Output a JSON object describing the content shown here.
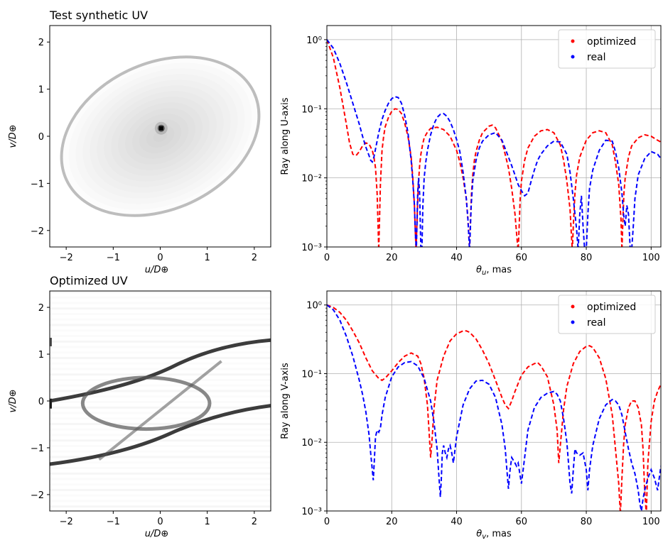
{
  "colors": {
    "optimized": "#ff0000",
    "real": "#0000ff",
    "grid": "#b0b0b0"
  },
  "chart_data": [
    {
      "type": "heatmap",
      "title": "Test synthetic UV",
      "xlabel": "u/D⊕",
      "ylabel": "v/D⊕",
      "xlim": [
        -2.35,
        2.35
      ],
      "ylim": [
        -2.35,
        2.35
      ],
      "xticks": [
        -2,
        -1,
        0,
        1,
        2
      ],
      "yticks": [
        -2,
        -1,
        0,
        1,
        2
      ],
      "xtick_labels": [
        "−2",
        "−1",
        "0",
        "1",
        "2"
      ],
      "ytick_labels": [
        "−2",
        "−1",
        "0",
        "1",
        "2"
      ],
      "grid": false,
      "features": {
        "ellipse": {
          "center": [
            0,
            0
          ],
          "semi_major": 2.2,
          "semi_minor": 1.55,
          "angle_deg": 25
        },
        "peak": [
          0.02,
          0.17
        ]
      }
    },
    {
      "type": "line",
      "ylabel": "Ray along U-axis",
      "xlabel": "θu, mas",
      "xlim": [
        0,
        103
      ],
      "ylim": [
        0.001,
        1.6
      ],
      "yscale": "log",
      "grid": true,
      "xticks": [
        0,
        20,
        40,
        60,
        80,
        100
      ],
      "yticks": [
        0.001,
        0.01,
        0.1,
        1
      ],
      "ytick_labels": [
        "10⁻³",
        "10⁻²",
        "10⁻¹",
        "10⁰"
      ],
      "legend": "top-right",
      "legend_entries": [
        "optimized",
        "real"
      ],
      "series": [
        {
          "name": "optimized",
          "x": [
            0,
            2,
            4,
            6,
            7,
            8,
            9,
            10,
            11,
            12,
            13,
            14,
            14.5,
            15,
            15.5,
            16,
            16.5,
            17,
            17.5,
            18,
            19,
            20,
            21,
            22,
            23,
            24,
            25,
            26,
            26.5,
            27,
            27.3,
            27.5,
            27.8,
            28.2,
            28.6,
            29,
            29.5,
            30,
            31,
            32,
            34,
            36,
            38,
            40,
            41,
            42,
            43,
            43.5,
            44,
            44.3,
            44.6,
            45,
            45.5,
            46,
            47,
            48,
            50,
            51,
            52,
            54,
            56,
            57,
            58,
            58.7,
            59,
            59.3,
            59.6,
            60,
            61,
            62,
            64,
            66,
            68,
            70,
            72,
            73,
            74,
            75,
            75.4,
            75.7,
            76,
            76.5,
            77,
            78,
            80,
            82,
            84,
            86,
            88,
            89,
            90,
            90.7,
            91,
            91.3,
            91.6,
            92,
            93,
            94,
            96,
            98,
            100,
            102,
            103
          ],
          "y": [
            1,
            0.55,
            0.2,
            0.06,
            0.032,
            0.022,
            0.021,
            0.024,
            0.029,
            0.032,
            0.031,
            0.025,
            0.02,
            0.014,
            0.006,
            0.0009,
            0.008,
            0.025,
            0.04,
            0.055,
            0.075,
            0.092,
            0.1,
            0.098,
            0.085,
            0.062,
            0.04,
            0.02,
            0.01,
            0.004,
            0.0015,
            0.0009,
            0.0025,
            0.008,
            0.015,
            0.022,
            0.03,
            0.038,
            0.046,
            0.052,
            0.054,
            0.05,
            0.04,
            0.025,
            0.017,
            0.01,
            0.005,
            0.0025,
            0.0009,
            0.0025,
            0.006,
            0.011,
            0.018,
            0.024,
            0.035,
            0.045,
            0.056,
            0.058,
            0.053,
            0.034,
            0.014,
            0.007,
            0.003,
            0.0012,
            0.0009,
            0.002,
            0.005,
            0.009,
            0.018,
            0.027,
            0.04,
            0.048,
            0.05,
            0.045,
            0.03,
            0.018,
            0.009,
            0.0035,
            0.0015,
            0.0009,
            0.002,
            0.006,
            0.011,
            0.02,
            0.035,
            0.045,
            0.048,
            0.045,
            0.03,
            0.017,
            0.008,
            0.0025,
            0.0009,
            0.0025,
            0.006,
            0.01,
            0.02,
            0.029,
            0.038,
            0.042,
            0.04,
            0.035,
            0.033
          ]
        },
        {
          "name": "real",
          "x": [
            0,
            2,
            4,
            6,
            8,
            10,
            11,
            12,
            13,
            13.5,
            14,
            14.5,
            15,
            16,
            17,
            18,
            19,
            20,
            21,
            22,
            23,
            24,
            25,
            26,
            26.5,
            27,
            27.3,
            27.6,
            28,
            28.3,
            28.6,
            29,
            29.3,
            29.6,
            30,
            30.5,
            31,
            32,
            33,
            34,
            35,
            36,
            37,
            38,
            39,
            40,
            41,
            42,
            43,
            43.5,
            44,
            44.5,
            45,
            46,
            47,
            48,
            50,
            52,
            54,
            56,
            57,
            58,
            59,
            60,
            61,
            62,
            63,
            64,
            65,
            66,
            68,
            70,
            72,
            74,
            75,
            76,
            77,
            77.5,
            78,
            78.5,
            79,
            79.5,
            80,
            80.5,
            81,
            82,
            84,
            86,
            88,
            89,
            90,
            91,
            91.5,
            92,
            92.5,
            93,
            93.5,
            94,
            94.5,
            95,
            96,
            98,
            100,
            102,
            103
          ],
          "y": [
            1,
            0.75,
            0.45,
            0.24,
            0.12,
            0.06,
            0.04,
            0.028,
            0.021,
            0.018,
            0.017,
            0.02,
            0.026,
            0.045,
            0.07,
            0.095,
            0.12,
            0.14,
            0.15,
            0.145,
            0.12,
            0.08,
            0.045,
            0.018,
            0.009,
            0.004,
            0.0015,
            0.0009,
            0.006,
            0.01,
            0.006,
            0.0009,
            0.0009,
            0.004,
            0.01,
            0.017,
            0.025,
            0.042,
            0.06,
            0.075,
            0.083,
            0.085,
            0.078,
            0.065,
            0.05,
            0.036,
            0.024,
            0.012,
            0.005,
            0.0025,
            0.0009,
            0.004,
            0.009,
            0.018,
            0.027,
            0.034,
            0.042,
            0.045,
            0.035,
            0.02,
            0.015,
            0.011,
            0.008,
            0.0065,
            0.0055,
            0.006,
            0.009,
            0.013,
            0.018,
            0.022,
            0.029,
            0.034,
            0.033,
            0.022,
            0.012,
            0.005,
            0.0018,
            0.0009,
            0.003,
            0.0055,
            0.002,
            0.0009,
            0.0009,
            0.003,
            0.007,
            0.013,
            0.025,
            0.035,
            0.034,
            0.024,
            0.014,
            0.006,
            0.003,
            0.002,
            0.004,
            0.003,
            0.001,
            0.0009,
            0.002,
            0.005,
            0.011,
            0.019,
            0.024,
            0.022,
            0.019
          ]
        }
      ]
    },
    {
      "type": "heatmap",
      "title": "Optimized UV",
      "xlabel": "u/D⊕",
      "ylabel": "v/D⊕",
      "xlim": [
        -2.35,
        2.35
      ],
      "ylim": [
        -2.35,
        2.35
      ],
      "xticks": [
        -2,
        -1,
        0,
        1,
        2
      ],
      "yticks": [
        -2,
        -1,
        0,
        1,
        2
      ],
      "xtick_labels": [
        "−2",
        "−1",
        "0",
        "1",
        "2"
      ],
      "ytick_labels": [
        "−2",
        "−1",
        "0",
        "1",
        "2"
      ],
      "grid": false,
      "features": {
        "upper_arc": {
          "from": [
            -2.35,
            0.0
          ],
          "to": [
            2.35,
            1.3
          ]
        },
        "lower_arc": {
          "from": [
            -2.35,
            -1.35
          ],
          "to": [
            2.35,
            -0.1
          ]
        },
        "inner_ellipse": {
          "center": [
            -0.3,
            -0.05
          ],
          "semi_major": 1.35,
          "semi_minor": 0.55
        }
      }
    },
    {
      "type": "line",
      "ylabel": "Ray along V-axis",
      "xlabel": "θv, mas",
      "xlim": [
        0,
        103
      ],
      "ylim": [
        0.001,
        1.6
      ],
      "yscale": "log",
      "grid": true,
      "xticks": [
        0,
        20,
        40,
        60,
        80,
        100
      ],
      "yticks": [
        0.001,
        0.01,
        0.1,
        1
      ],
      "ytick_labels": [
        "10⁻³",
        "10⁻²",
        "10⁻¹",
        "10⁰"
      ],
      "legend": "top-right",
      "legend_entries": [
        "optimized",
        "real"
      ],
      "series": [
        {
          "name": "optimized",
          "x": [
            0,
            2,
            4,
            6,
            8,
            10,
            12,
            14,
            16,
            17,
            18,
            20,
            22,
            24,
            26,
            28,
            29,
            30,
            31,
            31.5,
            32,
            32.5,
            33,
            34,
            36,
            38,
            40,
            42,
            43,
            44,
            46,
            48,
            50,
            52,
            54,
            55,
            56,
            57,
            58,
            60,
            62,
            64,
            65,
            66,
            68,
            70,
            71,
            71.5,
            72,
            73,
            74,
            76,
            78,
            80,
            81,
            82,
            84,
            86,
            88,
            89,
            90,
            90.5,
            91,
            91.5,
            92,
            93,
            94,
            95,
            96,
            97,
            97.5,
            98,
            98.5,
            99,
            100,
            101,
            102,
            103
          ],
          "y": [
            1,
            0.92,
            0.78,
            0.6,
            0.42,
            0.28,
            0.17,
            0.11,
            0.085,
            0.08,
            0.086,
            0.11,
            0.145,
            0.18,
            0.2,
            0.18,
            0.14,
            0.085,
            0.035,
            0.015,
            0.006,
            0.012,
            0.03,
            0.08,
            0.18,
            0.3,
            0.38,
            0.42,
            0.42,
            0.4,
            0.32,
            0.22,
            0.14,
            0.08,
            0.045,
            0.035,
            0.031,
            0.04,
            0.055,
            0.095,
            0.125,
            0.14,
            0.145,
            0.13,
            0.09,
            0.035,
            0.015,
            0.005,
            0.009,
            0.03,
            0.065,
            0.14,
            0.21,
            0.25,
            0.255,
            0.24,
            0.17,
            0.085,
            0.025,
            0.008,
            0.0025,
            0.0009,
            0.003,
            0.009,
            0.018,
            0.032,
            0.04,
            0.04,
            0.032,
            0.018,
            0.008,
            0.002,
            0.0009,
            0.005,
            0.02,
            0.04,
            0.055,
            0.07
          ]
        },
        {
          "name": "real",
          "x": [
            0,
            2,
            4,
            6,
            8,
            10,
            11,
            12,
            13,
            13.5,
            14,
            14.3,
            14.6,
            15,
            15.5,
            16,
            16.5,
            17,
            18,
            20,
            22,
            24,
            26,
            28,
            30,
            32,
            33,
            34,
            34.5,
            35,
            35.3,
            35.6,
            36,
            36.5,
            37,
            37.5,
            38,
            38.5,
            39,
            40,
            42,
            44,
            46,
            48,
            50,
            52,
            54,
            55,
            55.5,
            56,
            56.5,
            57,
            58,
            58.5,
            59,
            59.5,
            60,
            61,
            62,
            64,
            66,
            68,
            70,
            71,
            72,
            73,
            74,
            74.5,
            75,
            75.5,
            76,
            76.5,
            77,
            78,
            79,
            80,
            80.5,
            81,
            82,
            84,
            86,
            88,
            89,
            90,
            91,
            92,
            93,
            94,
            95,
            96,
            96.5,
            97,
            97.5,
            98,
            99,
            100,
            101,
            102,
            103
          ],
          "y": [
            1,
            0.85,
            0.6,
            0.35,
            0.18,
            0.08,
            0.05,
            0.028,
            0.013,
            0.007,
            0.004,
            0.0028,
            0.005,
            0.012,
            0.015,
            0.014,
            0.016,
            0.025,
            0.045,
            0.09,
            0.125,
            0.145,
            0.15,
            0.13,
            0.085,
            0.04,
            0.02,
            0.008,
            0.0035,
            0.0016,
            0.003,
            0.007,
            0.009,
            0.007,
            0.006,
            0.008,
            0.009,
            0.007,
            0.005,
            0.012,
            0.035,
            0.06,
            0.078,
            0.08,
            0.07,
            0.045,
            0.018,
            0.008,
            0.004,
            0.0021,
            0.004,
            0.006,
            0.005,
            0.0045,
            0.005,
            0.0035,
            0.0025,
            0.006,
            0.015,
            0.032,
            0.045,
            0.052,
            0.055,
            0.05,
            0.04,
            0.022,
            0.01,
            0.005,
            0.0025,
            0.0018,
            0.004,
            0.008,
            0.007,
            0.0065,
            0.007,
            0.004,
            0.002,
            0.004,
            0.009,
            0.022,
            0.035,
            0.042,
            0.04,
            0.035,
            0.025,
            0.014,
            0.008,
            0.005,
            0.0035,
            0.002,
            0.0013,
            0.001,
            0.0015,
            0.002,
            0.003,
            0.004,
            0.003,
            0.002,
            0.0045
          ]
        }
      ]
    }
  ]
}
